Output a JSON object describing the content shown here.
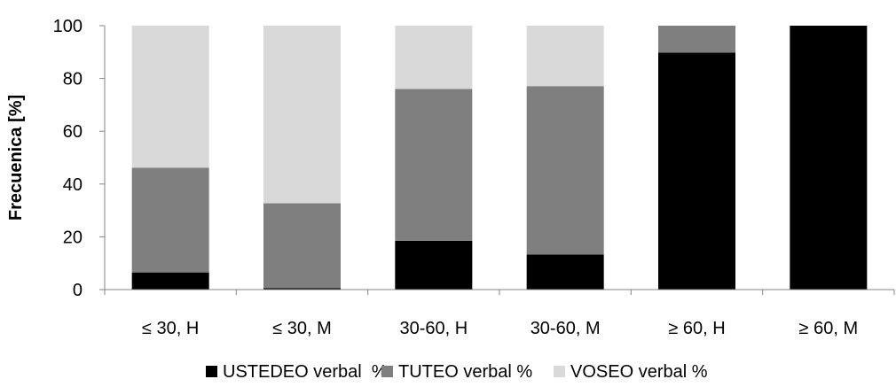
{
  "chart_data": {
    "type": "bar",
    "stacked": true,
    "title": "",
    "xlabel": "",
    "ylabel": "Frecuenica [%]",
    "ylim": [
      0,
      100
    ],
    "yticks": [
      0,
      20,
      40,
      60,
      80,
      100
    ],
    "ytick_labels": [
      "0",
      "20",
      "40",
      "60",
      "80",
      "100"
    ],
    "grid": false,
    "legend_position": "bottom",
    "categories": [
      "≤ 30, H",
      "≤ 30, M",
      "30-60, H",
      "30-60, M",
      "≥ 60, H",
      "≥ 60, M"
    ],
    "series": [
      {
        "name": "USTEDEO verbal  %",
        "color": "#000000",
        "values": [
          6.5,
          0.5,
          18.5,
          13.3,
          89.8,
          100
        ]
      },
      {
        "name": "TUTEO verbal %",
        "color": "#7f7f7f",
        "values": [
          39.7,
          32.2,
          57.5,
          63.8,
          10.2,
          0
        ]
      },
      {
        "name": "VOSEO verbal %",
        "color": "#d9d9d9",
        "values": [
          53.8,
          67.3,
          24.0,
          22.9,
          0,
          0
        ]
      }
    ]
  }
}
